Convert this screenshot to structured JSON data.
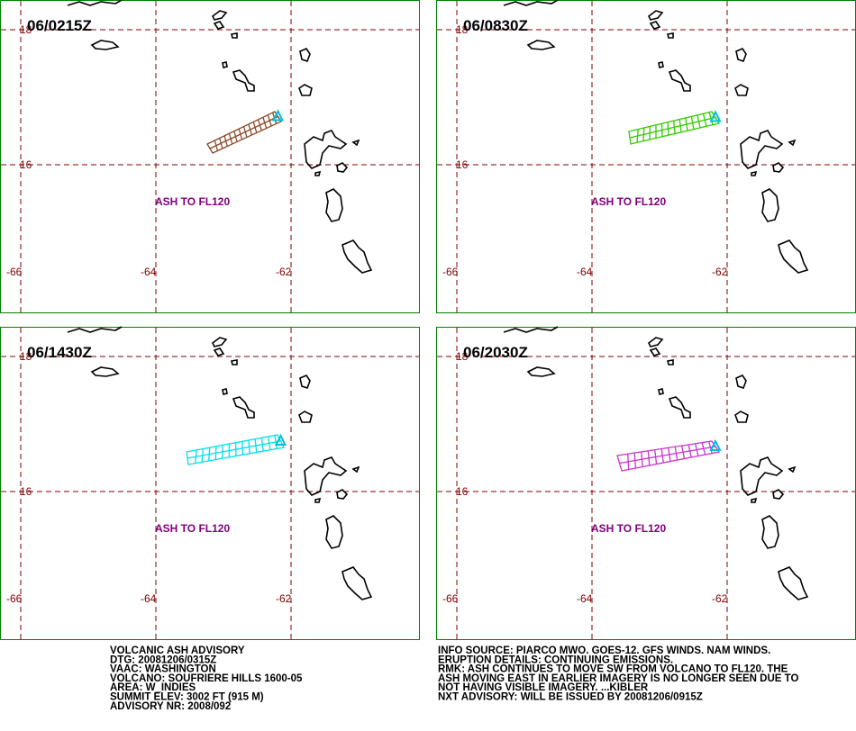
{
  "panels": [
    {
      "time": "06/0215Z",
      "ash_label": "ASH TO FL120",
      "lat_labels": [
        "18",
        "16"
      ],
      "lon_labels": [
        "-66",
        "-64",
        "-62"
      ],
      "plume_color": "#8b4a2b"
    },
    {
      "time": "06/0830Z",
      "ash_label": "ASH TO FL120",
      "lat_labels": [
        "18",
        "16"
      ],
      "lon_labels": [
        "-66",
        "-64",
        "-62"
      ],
      "plume_color": "#33cc00"
    },
    {
      "time": "06/1430Z",
      "ash_label": "ASH TO FL120",
      "lat_labels": [
        "18",
        "16"
      ],
      "lon_labels": [
        "-66",
        "-64",
        "-62"
      ],
      "plume_color": "#00e0f0"
    },
    {
      "time": "06/2030Z",
      "ash_label": "ASH TO FL120",
      "lat_labels": [
        "18",
        "16"
      ],
      "lon_labels": [
        "-66",
        "-64",
        "-62"
      ],
      "plume_color": "#cc33cc"
    }
  ],
  "advisory_left": [
    "VOLCANIC ASH ADVISORY",
    "DTG: 20081206/0315Z",
    "VAAC: WASHINGTON",
    "VOLCANO: SOUFRIERE HILLS 1600-05",
    "AREA: W_INDIES",
    "SUMMIT ELEV: 3002 FT (915 M)",
    "ADVISORY NR: 2008/092"
  ],
  "advisory_right": [
    "INFO SOURCE: PIARCO MWO. GOES-12. GFS WINDS. NAM WINDS.",
    "ERUPTION DETAILS: CONTINUING EMISSIONS.",
    "RMK: ASH CONTINUES TO MOVE SW FROM VOLCANO TO FL120. THE",
    "ASH MOVING EAST IN EARLIER IMAGERY IS NO LONGER SEEN DUE TO",
    "NOT HAVING VISIBLE IMAGERY. ...KIBLER",
    "NXT ADVISORY: WILL BE ISSUED BY 20081206/0915Z"
  ]
}
